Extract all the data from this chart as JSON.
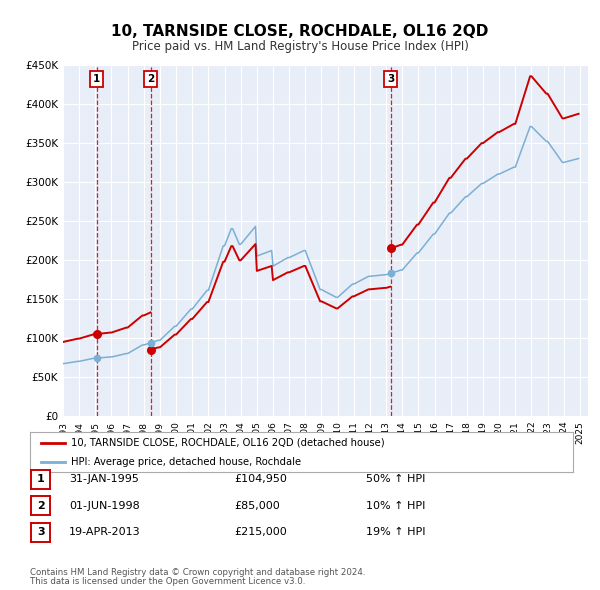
{
  "title": "10, TARNSIDE CLOSE, ROCHDALE, OL16 2QD",
  "subtitle": "Price paid vs. HM Land Registry's House Price Index (HPI)",
  "legend_line1": "10, TARNSIDE CLOSE, ROCHDALE, OL16 2QD (detached house)",
  "legend_line2": "HPI: Average price, detached house, Rochdale",
  "footnote1": "Contains HM Land Registry data © Crown copyright and database right 2024.",
  "footnote2": "This data is licensed under the Open Government Licence v3.0.",
  "transactions": [
    {
      "num": 1,
      "date": "31-JAN-1995",
      "date_float": 1995.08,
      "price": 104950,
      "pct": "50% ↑ HPI"
    },
    {
      "num": 2,
      "date": "01-JUN-1998",
      "date_float": 1998.42,
      "price": 85000,
      "pct": "10% ↑ HPI"
    },
    {
      "num": 3,
      "date": "19-APR-2013",
      "date_float": 2013.3,
      "price": 215000,
      "pct": "19% ↑ HPI"
    }
  ],
  "price_color": "#cc0000",
  "hpi_color": "#7bafd4",
  "vline_color": "#cc0000",
  "marker_color": "#cc0000",
  "plot_bg": "#e8eef8",
  "grid_color": "#ffffff",
  "ylim": [
    0,
    450000
  ],
  "xlim_start": 1993.0,
  "xlim_end": 2025.5,
  "yticks": [
    0,
    50000,
    100000,
    150000,
    200000,
    250000,
    300000,
    350000,
    400000,
    450000
  ],
  "ytick_labels": [
    "£0",
    "£50K",
    "£100K",
    "£150K",
    "£200K",
    "£250K",
    "£300K",
    "£350K",
    "£400K",
    "£450K"
  ],
  "xticks": [
    1993,
    1994,
    1995,
    1996,
    1997,
    1998,
    1999,
    2000,
    2001,
    2002,
    2003,
    2004,
    2005,
    2006,
    2007,
    2008,
    2009,
    2010,
    2011,
    2012,
    2013,
    2014,
    2015,
    2016,
    2017,
    2018,
    2019,
    2020,
    2021,
    2022,
    2023,
    2024,
    2025
  ]
}
